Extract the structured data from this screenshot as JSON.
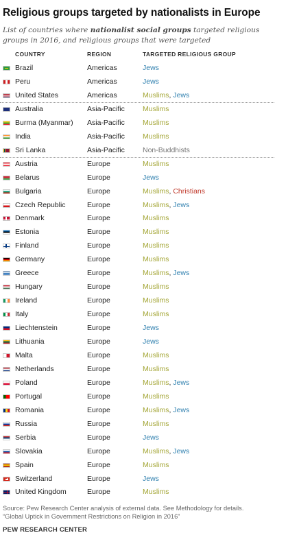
{
  "title": "Religious groups targeted by nationalists in Europe",
  "subtitle_pre": "List of countries where ",
  "subtitle_bold": "nationalist social groups",
  "subtitle_post": " targeted religious groups in 2016, and religious groups that were targeted",
  "headers": {
    "country": "COUNTRY",
    "region": "REGION",
    "group": "TARGETED RELIGIOUS GROUP"
  },
  "group_colors": {
    "muslims": "#a3a534",
    "jews": "#2e7fae",
    "christians": "#c0392b",
    "non_buddhists": "#777777"
  },
  "rows": [
    {
      "country": "Brazil",
      "region": "Americas",
      "flag": "brazil-flag-icon",
      "groups": [
        {
          "text": "Jews",
          "type": "jews"
        }
      ]
    },
    {
      "country": "Peru",
      "region": "Americas",
      "flag": "peru-flag-icon",
      "groups": [
        {
          "text": "Jews",
          "type": "jews"
        }
      ]
    },
    {
      "country": "United States",
      "region": "Americas",
      "flag": "united-states-flag-icon",
      "groups": [
        {
          "text": "Muslims",
          "type": "muslims"
        },
        {
          "text": "Jews",
          "type": "jews"
        }
      ]
    },
    {
      "country": "Australia",
      "region": "Asia-Pacific",
      "flag": "australia-flag-icon",
      "groups": [
        {
          "text": "Muslims",
          "type": "muslims"
        }
      ]
    },
    {
      "country": "Burma (Myanmar)",
      "region": "Asia-Pacific",
      "flag": "burma-flag-icon",
      "groups": [
        {
          "text": "Muslims",
          "type": "muslims"
        }
      ]
    },
    {
      "country": "India",
      "region": "Asia-Pacific",
      "flag": "india-flag-icon",
      "groups": [
        {
          "text": "Muslims",
          "type": "muslims"
        }
      ]
    },
    {
      "country": "Sri Lanka",
      "region": "Asia-Pacific",
      "flag": "sri-lanka-flag-icon",
      "groups": [
        {
          "text": "Non-Buddhists",
          "type": "nonbud"
        }
      ]
    },
    {
      "country": "Austria",
      "region": "Europe",
      "flag": "austria-flag-icon",
      "groups": [
        {
          "text": "Muslims",
          "type": "muslims"
        }
      ]
    },
    {
      "country": "Belarus",
      "region": "Europe",
      "flag": "belarus-flag-icon",
      "groups": [
        {
          "text": "Jews",
          "type": "jews"
        }
      ]
    },
    {
      "country": "Bulgaria",
      "region": "Europe",
      "flag": "bulgaria-flag-icon",
      "groups": [
        {
          "text": "Muslims",
          "type": "muslims"
        },
        {
          "text": "Christians",
          "type": "christians"
        }
      ]
    },
    {
      "country": "Czech Republic",
      "region": "Europe",
      "flag": "czech-republic-flag-icon",
      "groups": [
        {
          "text": "Muslims",
          "type": "muslims"
        },
        {
          "text": "Jews",
          "type": "jews"
        }
      ]
    },
    {
      "country": "Denmark",
      "region": "Europe",
      "flag": "denmark-flag-icon",
      "groups": [
        {
          "text": "Muslims",
          "type": "muslims"
        }
      ]
    },
    {
      "country": "Estonia",
      "region": "Europe",
      "flag": "estonia-flag-icon",
      "groups": [
        {
          "text": "Muslims",
          "type": "muslims"
        }
      ]
    },
    {
      "country": "Finland",
      "region": "Europe",
      "flag": "finland-flag-icon",
      "groups": [
        {
          "text": "Muslims",
          "type": "muslims"
        }
      ]
    },
    {
      "country": "Germany",
      "region": "Europe",
      "flag": "germany-flag-icon",
      "groups": [
        {
          "text": "Muslims",
          "type": "muslims"
        }
      ]
    },
    {
      "country": "Greece",
      "region": "Europe",
      "flag": "greece-flag-icon",
      "groups": [
        {
          "text": "Muslims",
          "type": "muslims"
        },
        {
          "text": "Jews",
          "type": "jews"
        }
      ]
    },
    {
      "country": "Hungary",
      "region": "Europe",
      "flag": "hungary-flag-icon",
      "groups": [
        {
          "text": "Muslims",
          "type": "muslims"
        }
      ]
    },
    {
      "country": "Ireland",
      "region": "Europe",
      "flag": "ireland-flag-icon",
      "groups": [
        {
          "text": "Muslims",
          "type": "muslims"
        }
      ]
    },
    {
      "country": "Italy",
      "region": "Europe",
      "flag": "italy-flag-icon",
      "groups": [
        {
          "text": "Muslims",
          "type": "muslims"
        }
      ]
    },
    {
      "country": "Liechtenstein",
      "region": "Europe",
      "flag": "liechtenstein-flag-icon",
      "groups": [
        {
          "text": "Jews",
          "type": "jews"
        }
      ]
    },
    {
      "country": "Lithuania",
      "region": "Europe",
      "flag": "lithuania-flag-icon",
      "groups": [
        {
          "text": "Jews",
          "type": "jews"
        }
      ]
    },
    {
      "country": "Malta",
      "region": "Europe",
      "flag": "malta-flag-icon",
      "groups": [
        {
          "text": "Muslims",
          "type": "muslims"
        }
      ]
    },
    {
      "country": "Netherlands",
      "region": "Europe",
      "flag": "netherlands-flag-icon",
      "groups": [
        {
          "text": "Muslims",
          "type": "muslims"
        }
      ]
    },
    {
      "country": "Poland",
      "region": "Europe",
      "flag": "poland-flag-icon",
      "groups": [
        {
          "text": "Muslims",
          "type": "muslims"
        },
        {
          "text": "Jews",
          "type": "jews"
        }
      ]
    },
    {
      "country": "Portugal",
      "region": "Europe",
      "flag": "portugal-flag-icon",
      "groups": [
        {
          "text": "Muslims",
          "type": "muslims"
        }
      ]
    },
    {
      "country": "Romania",
      "region": "Europe",
      "flag": "romania-flag-icon",
      "groups": [
        {
          "text": "Muslims",
          "type": "muslims"
        },
        {
          "text": "Jews",
          "type": "jews"
        }
      ]
    },
    {
      "country": "Russia",
      "region": "Europe",
      "flag": "russia-flag-icon",
      "groups": [
        {
          "text": "Muslims",
          "type": "muslims"
        }
      ]
    },
    {
      "country": "Serbia",
      "region": "Europe",
      "flag": "serbia-flag-icon",
      "groups": [
        {
          "text": "Jews",
          "type": "jews"
        }
      ]
    },
    {
      "country": "Slovakia",
      "region": "Europe",
      "flag": "slovakia-flag-icon",
      "groups": [
        {
          "text": "Muslims",
          "type": "muslims"
        },
        {
          "text": "Jews",
          "type": "jews"
        }
      ]
    },
    {
      "country": "Spain",
      "region": "Europe",
      "flag": "spain-flag-icon",
      "groups": [
        {
          "text": "Muslims",
          "type": "muslims"
        }
      ]
    },
    {
      "country": "Switzerland",
      "region": "Europe",
      "flag": "switzerland-flag-icon",
      "groups": [
        {
          "text": "Jews",
          "type": "jews"
        }
      ]
    },
    {
      "country": "United Kingdom",
      "region": "Europe",
      "flag": "united-kingdom-flag-icon",
      "groups": [
        {
          "text": "Muslims",
          "type": "muslims"
        }
      ]
    }
  ],
  "source_line1": "Source: Pew Research Center analysis of external data. See Methodology for details.",
  "source_line2": "“Global Uptick in Government Restrictions on Religion in 2016”",
  "organization": "PEW RESEARCH CENTER"
}
